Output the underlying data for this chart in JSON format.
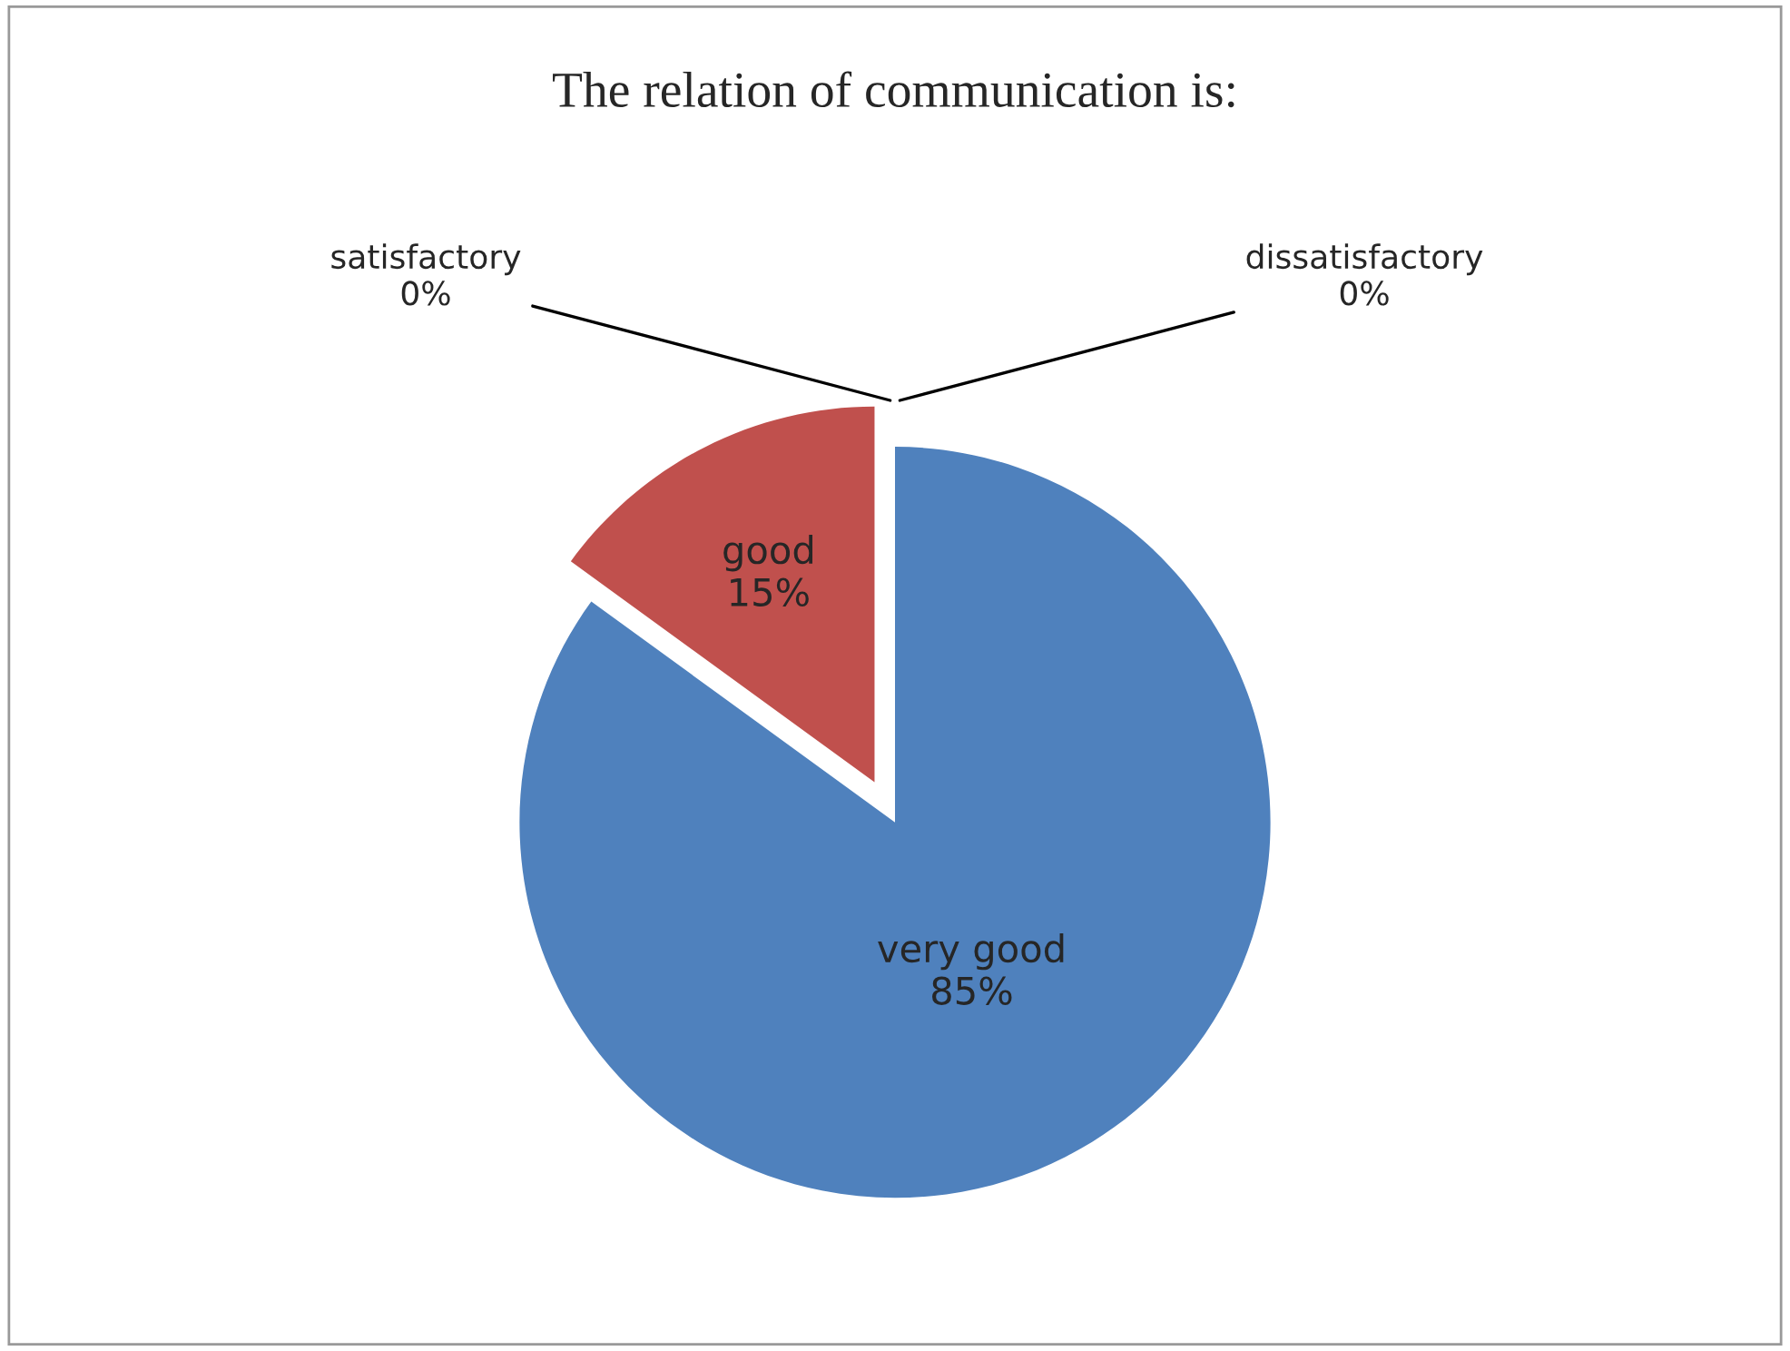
{
  "chart_data": {
    "type": "pie",
    "title": "The relation of communication is:",
    "categories": [
      "very good",
      "good",
      "satisfactory",
      "dissatisfactory"
    ],
    "values": [
      85,
      15,
      0,
      0
    ],
    "value_labels": [
      "85%",
      "15%",
      "0%",
      "0%"
    ],
    "colors": [
      "#4f81bd",
      "#c0504d",
      "#9bbb59",
      "#8064a2"
    ],
    "legend": false
  }
}
